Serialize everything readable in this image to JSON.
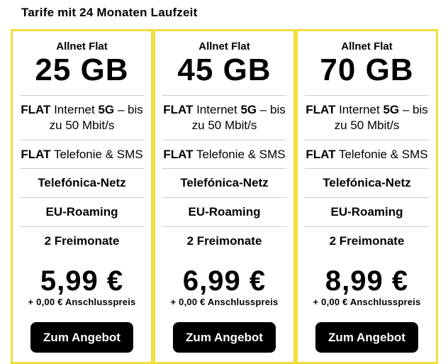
{
  "page": {
    "title": "Tarife mit 24 Monaten Laufzeit"
  },
  "colors": {
    "accent_yellow": "#F1DF3B",
    "divider_gray": "#CCCCCC",
    "button_bg": "#000000",
    "button_text": "#FFFFFF"
  },
  "plans": [
    {
      "name": "Allnet Flat",
      "data_volume": "25 GB",
      "internet": {
        "flat": "FLAT",
        "mid": " Internet ",
        "tech": "5G",
        "rest": " – bis zu 50 Mbit/s"
      },
      "phone": {
        "flat": "FLAT",
        "rest": " Telefonie & SMS"
      },
      "network": "Telefónica-Netz",
      "roaming": "EU-Roaming",
      "free_months": "2 Freimonate",
      "price": "5,99 €",
      "price_note": "+ 0,00 € Anschlusspreis",
      "cta_label": "Zum Angebot"
    },
    {
      "name": "Allnet Flat",
      "data_volume": "45 GB",
      "internet": {
        "flat": "FLAT",
        "mid": " Internet ",
        "tech": "5G",
        "rest": " – bis zu 50 Mbit/s"
      },
      "phone": {
        "flat": "FLAT",
        "rest": " Telefonie & SMS"
      },
      "network": "Telefónica-Netz",
      "roaming": "EU-Roaming",
      "free_months": "2 Freimonate",
      "price": "6,99 €",
      "price_note": "+ 0,00 € Anschlusspreis",
      "cta_label": "Zum Angebot"
    },
    {
      "name": "Allnet Flat",
      "data_volume": "70 GB",
      "internet": {
        "flat": "FLAT",
        "mid": " Internet ",
        "tech": "5G",
        "rest": " – bis zu 50 Mbit/s"
      },
      "phone": {
        "flat": "FLAT",
        "rest": " Telefonie & SMS"
      },
      "network": "Telefónica-Netz",
      "roaming": "EU-Roaming",
      "free_months": "2 Freimonate",
      "price": "8,99 €",
      "price_note": "+ 0,00 € Anschlusspreis",
      "cta_label": "Zum Angebot"
    }
  ]
}
